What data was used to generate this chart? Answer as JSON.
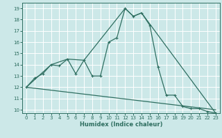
{
  "title": "",
  "xlabel": "Humidex (Indice chaleur)",
  "bg_color": "#cce8e8",
  "grid_color": "#ffffff",
  "line_color": "#2e6e60",
  "xlim": [
    -0.5,
    23.5
  ],
  "ylim": [
    9.7,
    19.5
  ],
  "xticks": [
    0,
    1,
    2,
    3,
    4,
    5,
    6,
    7,
    8,
    9,
    10,
    11,
    12,
    13,
    14,
    15,
    16,
    17,
    18,
    19,
    20,
    21,
    22,
    23
  ],
  "yticks": [
    10,
    11,
    12,
    13,
    14,
    15,
    16,
    17,
    18,
    19
  ],
  "line1_x": [
    0,
    1,
    2,
    3,
    4,
    5,
    6,
    7,
    8,
    9,
    10,
    11,
    12,
    13,
    14,
    15,
    16,
    17,
    18,
    19,
    20,
    21,
    22,
    23
  ],
  "line1_y": [
    12.0,
    12.8,
    13.2,
    14.0,
    13.9,
    14.5,
    13.2,
    14.4,
    13.0,
    13.0,
    16.0,
    16.4,
    19.0,
    18.3,
    18.6,
    17.5,
    13.8,
    11.3,
    11.3,
    10.3,
    10.1,
    10.1,
    9.85,
    9.7
  ],
  "line2_x": [
    0,
    23
  ],
  "line2_y": [
    12.0,
    10.0
  ],
  "line3_x": [
    0,
    3,
    5,
    7,
    12,
    13,
    14,
    23
  ],
  "line3_y": [
    12.0,
    14.0,
    14.5,
    14.4,
    19.0,
    18.3,
    18.6,
    9.7
  ]
}
